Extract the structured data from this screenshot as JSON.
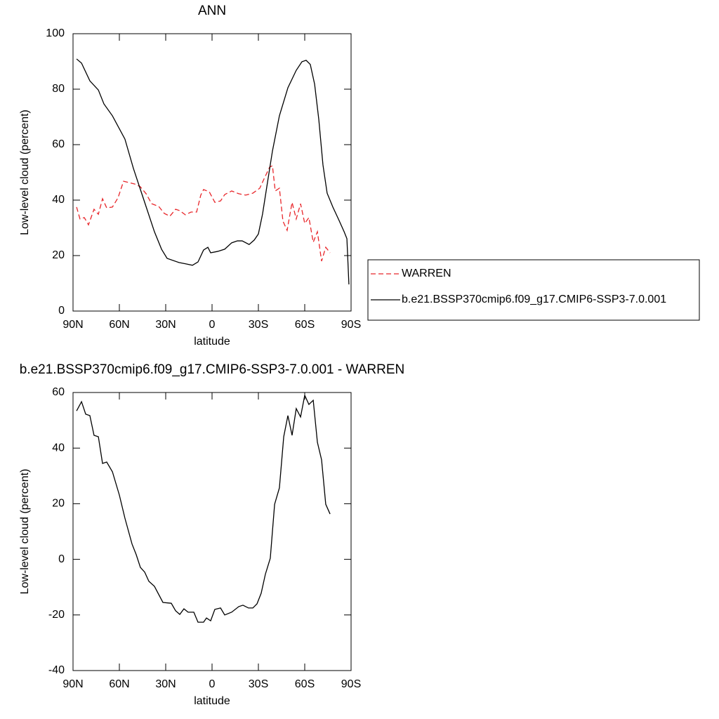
{
  "chart_data": [
    {
      "type": "line",
      "title": "ANN",
      "xlabel": "latitude",
      "ylabel": "Low-level cloud (percent)",
      "xlim": [
        90,
        -90
      ],
      "xticks": [
        {
          "value": 90,
          "label": "90N"
        },
        {
          "value": 60,
          "label": "60N"
        },
        {
          "value": 30,
          "label": "30N"
        },
        0,
        {
          "value": -30,
          "label": "30S"
        },
        {
          "value": -60,
          "label": "60S"
        },
        {
          "value": -90,
          "label": "90S"
        }
      ],
      "ylim": [
        0,
        100
      ],
      "yticks": [
        0,
        20,
        40,
        60,
        80,
        100
      ],
      "legend": "right",
      "series": [
        {
          "name": "WARREN",
          "color": "#e8262a",
          "linestyle": "dashed",
          "x": [
            87.7,
            85.5,
            82.7,
            80,
            76.4,
            73.6,
            70.9,
            68.2,
            64.5,
            60.9,
            57.3,
            53.6,
            50,
            46.4,
            42.7,
            39.1,
            34.5,
            30.9,
            27.3,
            23.6,
            20.9,
            17.3,
            13.6,
            10,
            7.3,
            5.5,
            1.8,
            -1.8,
            -5.5,
            -8.2,
            -12.7,
            -17.3,
            -21.8,
            -26.4,
            -30.9,
            -33.6,
            -37.3,
            -39.1,
            -40.9,
            -43.6,
            -45.9,
            -48.6,
            -51.8,
            -54.5,
            -57.3,
            -60,
            -62.7,
            -65.5,
            -68.2,
            -70.9,
            -73.6,
            -76.4
          ],
          "values": [
            37.5,
            33.2,
            33.7,
            31.1,
            36.7,
            34.9,
            40.5,
            37.2,
            37.5,
            40.8,
            46.8,
            46.3,
            45.8,
            44.8,
            42.3,
            38.7,
            37.7,
            35.2,
            34.2,
            36.7,
            36.2,
            34.7,
            35.7,
            35.7,
            41.8,
            43.8,
            43,
            39.2,
            39.7,
            42,
            43.3,
            42.3,
            41.8,
            42.5,
            44.3,
            47.6,
            51.9,
            52.4,
            43.3,
            44.3,
            32.4,
            29.1,
            39.2,
            33.2,
            38.7,
            31.6,
            33.7,
            24.8,
            28.6,
            18,
            23,
            21
          ]
        },
        {
          "name": "b.e21.BSSP370cmip6.f09_g17.CMIP6-SSP3-7.0.001",
          "color": "#000000",
          "linestyle": "solid",
          "x": [
            87.7,
            84.5,
            79.1,
            73.6,
            70,
            64.5,
            56.4,
            50.9,
            44.1,
            37.3,
            32.7,
            29.1,
            21.4,
            16.8,
            12.7,
            9.1,
            5.5,
            2.7,
            0.9,
            -3.6,
            -8.2,
            -12.7,
            -16.4,
            -19.5,
            -24,
            -27.3,
            -30,
            -32.7,
            -35.5,
            -39.1,
            -43.6,
            -49.1,
            -54.5,
            -58.2,
            -60.9,
            -63.6,
            -66.4,
            -69.1,
            -71.8,
            -74.5,
            -78.2,
            -81.8,
            -85.5,
            -87.3,
            -88.6
          ],
          "values": [
            90.9,
            89.4,
            83,
            79.7,
            74.7,
            70.4,
            62,
            51.4,
            40,
            28.6,
            22.3,
            19,
            17.5,
            17,
            16.5,
            17.7,
            22,
            23,
            21,
            21.5,
            22.3,
            24.6,
            25.3,
            25.3,
            24,
            25.6,
            27.8,
            35,
            45,
            57.7,
            70.4,
            80.5,
            86.8,
            89.9,
            90.4,
            88.9,
            81.8,
            69.1,
            52.7,
            42.5,
            37.5,
            33.2,
            28.6,
            26.1,
            9.6
          ]
        }
      ]
    },
    {
      "type": "line",
      "title": "b.e21.BSSP370cmip6.f09_g17.CMIP6-SSP3-7.0.001 - WARREN",
      "xlabel": "latitude",
      "ylabel": "Low-level cloud (percent)",
      "xlim": [
        90,
        -90
      ],
      "xticks": [
        {
          "value": 90,
          "label": "90N"
        },
        {
          "value": 60,
          "label": "60N"
        },
        {
          "value": 30,
          "label": "30N"
        },
        0,
        {
          "value": -30,
          "label": "30S"
        },
        {
          "value": -60,
          "label": "60S"
        },
        {
          "value": -90,
          "label": "90S"
        }
      ],
      "ylim": [
        -40,
        60
      ],
      "yticks": [
        -40,
        -20,
        0,
        20,
        40,
        60
      ],
      "series": [
        {
          "color": "#000000",
          "linestyle": "solid",
          "x": [
            87.7,
            84.5,
            81.8,
            79.1,
            76.4,
            73.6,
            70.9,
            68.2,
            64.5,
            60,
            56.4,
            51.8,
            49.1,
            46.4,
            43.6,
            40.9,
            37.3,
            31.8,
            26.4,
            23.6,
            20.9,
            18.2,
            15.5,
            11.8,
            9.1,
            5.5,
            3.6,
            0.9,
            -1.8,
            -5.5,
            -8.2,
            -12.7,
            -17.3,
            -20,
            -23.6,
            -26.4,
            -29.1,
            -31.8,
            -34.5,
            -37.7,
            -40.5,
            -43.6,
            -46.4,
            -49.1,
            -51.8,
            -54.5,
            -57.3,
            -60,
            -62.7,
            -65.5,
            -68.2,
            -70.9,
            -73.6,
            -76.4
          ],
          "values": [
            53.4,
            56.7,
            52.2,
            51.7,
            44.6,
            44.1,
            34.5,
            35,
            31.5,
            23.1,
            14.8,
            5.5,
            1.7,
            -2.9,
            -4.6,
            -7.9,
            -9.7,
            -15.5,
            -15.8,
            -18.5,
            -19.8,
            -17.8,
            -19,
            -19,
            -22.6,
            -22.6,
            -21.1,
            -22.1,
            -18,
            -17.5,
            -20,
            -19,
            -17,
            -16.5,
            -17.5,
            -17.5,
            -16,
            -12.2,
            -5.4,
            0.4,
            19.8,
            25.7,
            44.1,
            51.7,
            44.6,
            54.2,
            51.2,
            59,
            55.7,
            57.2,
            42.1,
            35.8,
            19.8,
            16.3
          ]
        }
      ]
    }
  ]
}
